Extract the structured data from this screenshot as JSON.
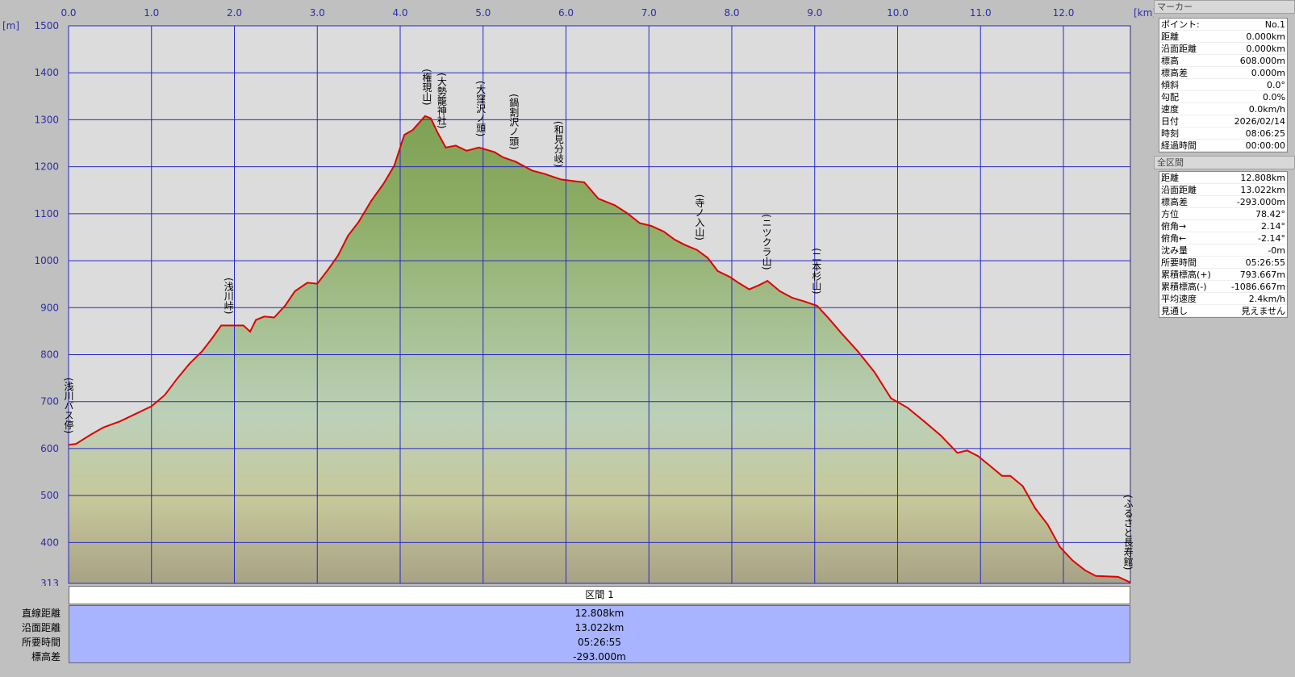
{
  "chart_data": {
    "type": "area",
    "x_unit": "[km]",
    "y_unit": "[m]",
    "xlim": [
      0,
      12.808
    ],
    "ylim": [
      313,
      1500
    ],
    "xticks": [
      {
        "value": 0,
        "label": "0.0"
      },
      {
        "value": 1,
        "label": "1.0"
      },
      {
        "value": 2,
        "label": "2.0"
      },
      {
        "value": 3,
        "label": "3.0"
      },
      {
        "value": 4,
        "label": "4.0"
      },
      {
        "value": 5,
        "label": "5.0"
      },
      {
        "value": 6,
        "label": "6.0"
      },
      {
        "value": 7,
        "label": "7.0"
      },
      {
        "value": 8,
        "label": "8.0"
      },
      {
        "value": 9,
        "label": "9.0"
      },
      {
        "value": 10,
        "label": "10.0"
      },
      {
        "value": 11,
        "label": "11.0"
      },
      {
        "value": 12,
        "label": "12.0"
      }
    ],
    "yticks": [
      313,
      400,
      500,
      600,
      700,
      800,
      900,
      1000,
      1100,
      1200,
      1300,
      1400,
      1500
    ],
    "grid": true,
    "color": "#e00000",
    "x": [
      0,
      0.09,
      0.27,
      0.42,
      0.62,
      0.82,
      1.0,
      1.16,
      1.31,
      1.46,
      1.61,
      1.74,
      1.84,
      2.11,
      2.19,
      2.26,
      2.36,
      2.48,
      2.61,
      2.73,
      2.88,
      3.0,
      3.13,
      3.25,
      3.37,
      3.5,
      3.65,
      3.8,
      3.93,
      4.05,
      4.15,
      4.3,
      4.37,
      4.45,
      4.55,
      4.67,
      4.8,
      4.95,
      5.14,
      5.24,
      5.39,
      5.59,
      5.74,
      5.94,
      6.12,
      6.22,
      6.39,
      6.59,
      6.74,
      6.89,
      7.03,
      7.18,
      7.31,
      7.43,
      7.58,
      7.71,
      7.83,
      7.98,
      8.08,
      8.21,
      8.33,
      8.43,
      8.58,
      8.73,
      8.88,
      9.03,
      9.17,
      9.32,
      9.52,
      9.72,
      9.92,
      10.12,
      10.32,
      10.52,
      10.72,
      10.84,
      10.97,
      11.11,
      11.26,
      11.36,
      11.51,
      11.66,
      11.81,
      11.96,
      12.11,
      12.26,
      12.39,
      12.66,
      12.808
    ],
    "values": [
      608,
      610,
      630,
      645,
      658,
      675,
      690,
      714,
      749,
      781,
      807,
      837,
      862,
      862,
      849,
      874,
      881,
      879,
      904,
      935,
      953,
      951,
      981,
      1011,
      1053,
      1083,
      1127,
      1164,
      1203,
      1268,
      1278,
      1308,
      1303,
      1273,
      1241,
      1245,
      1234,
      1241,
      1231,
      1220,
      1211,
      1192,
      1185,
      1173,
      1169,
      1167,
      1132,
      1118,
      1101,
      1080,
      1074,
      1062,
      1045,
      1034,
      1023,
      1006,
      978,
      965,
      953,
      939,
      948,
      957,
      935,
      921,
      913,
      904,
      877,
      846,
      807,
      763,
      707,
      687,
      658,
      628,
      591,
      596,
      584,
      564,
      542,
      542,
      520,
      473,
      438,
      390,
      362,
      341,
      329,
      327,
      315
    ],
    "annotations": [
      {
        "label": "(浅川バス停)",
        "x": 0
      },
      {
        "label": "(浅川峠)",
        "x": 1.93
      },
      {
        "label": "(権現山)",
        "x": 4.32
      },
      {
        "label": "(大勢籠神社)",
        "x": 4.5
      },
      {
        "label": "(大窪沢ノ頭)",
        "x": 4.97
      },
      {
        "label": "(鍋割沢ノ頭)",
        "x": 5.37
      },
      {
        "label": "(和見分岐)",
        "x": 5.91
      },
      {
        "label": "(寺ノ入山)",
        "x": 7.61
      },
      {
        "label": "(ニツクラ山)",
        "x": 8.42
      },
      {
        "label": "(二本杉山)",
        "x": 9.02
      },
      {
        "label": "(ふるさと長寿館)",
        "x": 12.78
      }
    ]
  },
  "section_table": {
    "title": "区間 1",
    "rows": [
      [
        "直線距離",
        "12.808km"
      ],
      [
        "沿面距離",
        "13.022km"
      ],
      [
        "所要時間",
        "05:26:55"
      ],
      [
        "標高差",
        "-293.000m"
      ]
    ]
  },
  "marker_panel": {
    "title": "マーカー",
    "rows": [
      [
        "ポイント:",
        "No.1"
      ],
      [
        "距離",
        "0.000km"
      ],
      [
        "沿面距離",
        "0.000km"
      ],
      [
        "標高",
        "608.000m"
      ],
      [
        "標高差",
        "0.000m"
      ],
      [
        "傾斜",
        "0.0°"
      ],
      [
        "勾配",
        "0.0%"
      ],
      [
        "速度",
        "0.0km/h"
      ],
      [
        "日付",
        "2026/02/14"
      ],
      [
        "時刻",
        "08:06:25"
      ],
      [
        "経過時間",
        "00:00:00"
      ]
    ]
  },
  "total_panel": {
    "title": "全区間",
    "rows": [
      [
        "距離",
        "12.808km"
      ],
      [
        "沿面距離",
        "13.022km"
      ],
      [
        "標高差",
        "-293.000m"
      ],
      [
        "方位",
        "78.42°"
      ],
      [
        "俯角→",
        "2.14°"
      ],
      [
        "俯角←",
        "-2.14°"
      ],
      [
        "沈み量",
        "-0m"
      ],
      [
        "所要時間",
        "05:26:55"
      ],
      [
        "累積標高(+)",
        "793.667m"
      ],
      [
        "累積標高(-)",
        "-1086.667m"
      ],
      [
        "平均速度",
        "2.4km/h"
      ],
      [
        "見通し",
        "見えません"
      ]
    ]
  }
}
